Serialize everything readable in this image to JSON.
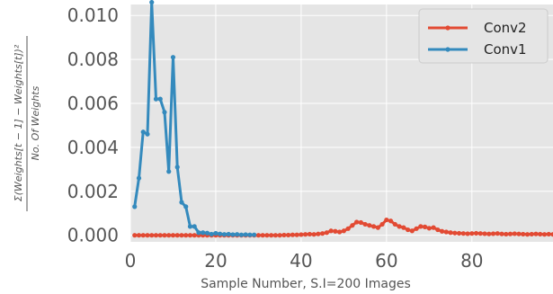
{
  "chart_data": {
    "type": "line",
    "title": "",
    "xlabel": "Sample Number, S.I=200 Images",
    "ylabel_numerator": "Σ(Weights[t − 1] − Weights[t])²",
    "ylabel_denominator": "No. Of Weights",
    "xlim": [
      0,
      99
    ],
    "ylim": [
      -0.0003,
      0.0105
    ],
    "xticks": [
      0,
      20,
      40,
      60,
      80
    ],
    "xtick_labels": [
      "0",
      "20",
      "40",
      "60",
      "80"
    ],
    "yticks": [
      0.0,
      0.002,
      0.004,
      0.006,
      0.008,
      0.01
    ],
    "ytick_labels": [
      "0.000",
      "0.002",
      "0.004",
      "0.006",
      "0.008",
      "0.010"
    ],
    "grid": true,
    "legend_position": "top-right",
    "colors": {
      "Conv2": "#e24a33",
      "Conv1": "#348abd",
      "background": "#e5e5e5",
      "grid": "#ffffff"
    },
    "series": [
      {
        "name": "Conv2",
        "x": [
          1,
          2,
          3,
          4,
          5,
          6,
          7,
          8,
          9,
          10,
          11,
          12,
          13,
          14,
          15,
          16,
          17,
          18,
          19,
          20,
          21,
          22,
          23,
          24,
          25,
          26,
          27,
          28,
          29,
          30,
          31,
          32,
          33,
          34,
          35,
          36,
          37,
          38,
          39,
          40,
          41,
          42,
          43,
          44,
          45,
          46,
          47,
          48,
          49,
          50,
          51,
          52,
          53,
          54,
          55,
          56,
          57,
          58,
          59,
          60,
          61,
          62,
          63,
          64,
          65,
          66,
          67,
          68,
          69,
          70,
          71,
          72,
          73,
          74,
          75,
          76,
          77,
          78,
          79,
          80,
          81,
          82,
          83,
          84,
          85,
          86,
          87,
          88,
          89,
          90,
          91,
          92,
          93,
          94,
          95,
          96,
          97,
          98,
          99
        ],
        "values": [
          0,
          0,
          0,
          0,
          0,
          0,
          0,
          0,
          0,
          0,
          0,
          0,
          0,
          0,
          0,
          0,
          0,
          0,
          0,
          0,
          0,
          0,
          0,
          0,
          0,
          0,
          0,
          0,
          0,
          0,
          0,
          0,
          0,
          0,
          0,
          1e-05,
          1e-05,
          2e-05,
          2e-05,
          3e-05,
          4e-05,
          5e-05,
          4e-05,
          6e-05,
          8e-05,
          0.00012,
          0.0002,
          0.00018,
          0.00015,
          0.0002,
          0.0003,
          0.00045,
          0.0006,
          0.00058,
          0.0005,
          0.00045,
          0.0004,
          0.00035,
          0.0005,
          0.0007,
          0.00065,
          0.0005,
          0.0004,
          0.00035,
          0.00025,
          0.0002,
          0.0003,
          0.0004,
          0.00038,
          0.00032,
          0.00035,
          0.00025,
          0.00018,
          0.00015,
          0.00012,
          0.0001,
          9e-05,
          8e-05,
          7e-05,
          8e-05,
          9e-05,
          8e-05,
          7e-05,
          6e-05,
          7e-05,
          8e-05,
          6e-05,
          5e-05,
          6e-05,
          7e-05,
          6e-05,
          5e-05,
          4e-05,
          5e-05,
          6e-05,
          5e-05,
          4e-05,
          5e-05,
          4e-05
        ]
      },
      {
        "name": "Conv1",
        "x": [
          1,
          2,
          3,
          4,
          5,
          6,
          7,
          8,
          9,
          10,
          11,
          12,
          13,
          14,
          15,
          16,
          17,
          18,
          19,
          20,
          21,
          22,
          23,
          24,
          25,
          26,
          27,
          28,
          29
        ],
        "values": [
          0.0013,
          0.0026,
          0.0047,
          0.0046,
          0.0106,
          0.0062,
          0.0062,
          0.0056,
          0.0029,
          0.0081,
          0.0031,
          0.0015,
          0.0013,
          0.0004,
          0.0004,
          0.00012,
          0.00012,
          0.0001,
          5e-05,
          9e-05,
          6e-05,
          4e-05,
          5e-05,
          3e-05,
          4e-05,
          2e-05,
          3e-05,
          2e-05,
          2e-05
        ]
      }
    ]
  }
}
